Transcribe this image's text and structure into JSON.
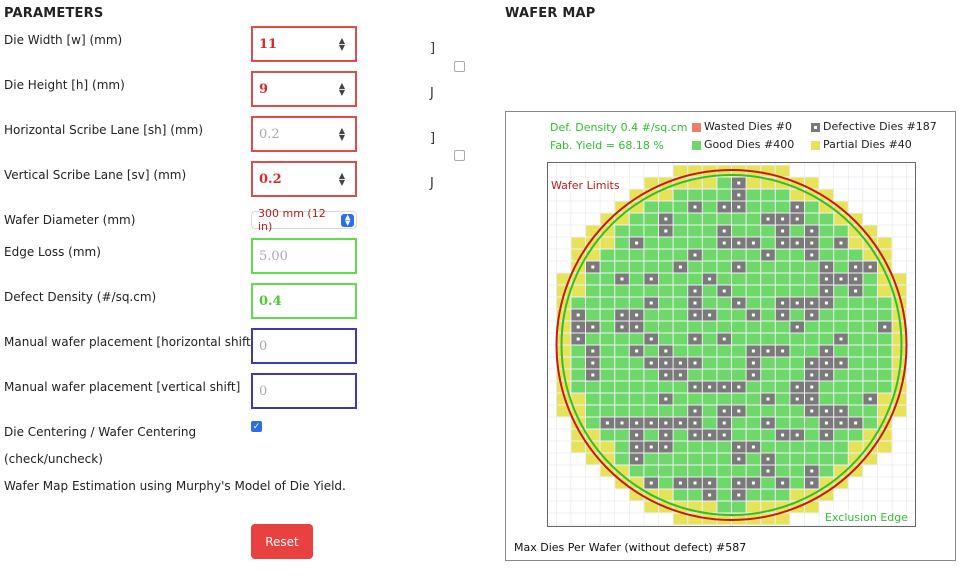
{
  "parameters": {
    "title": "PARAMETERS",
    "die_width": {
      "label": "Die Width [w] (mm)",
      "value": "11"
    },
    "die_height": {
      "label": "Die Height [h] (mm)",
      "value": "9"
    },
    "h_scribe": {
      "label": "Horizontal Scribe Lane [sh] (mm)",
      "value": "0.2"
    },
    "v_scribe": {
      "label": "Vertical Scribe Lane [sv] (mm)",
      "value": "0.2"
    },
    "wafer_diameter": {
      "label": "Wafer Diameter (mm)",
      "selected": "300 mm (12 in)"
    },
    "edge_loss": {
      "label": "Edge Loss (mm)",
      "value": "5.00"
    },
    "defect_density": {
      "label": "Defect Density (#/sq.cm)",
      "value": "0.4"
    },
    "h_shift": {
      "label": "Manual wafer placement [horizontal shift]",
      "placeholder": "0"
    },
    "v_shift": {
      "label": "Manual wafer placement [vertical shift]",
      "placeholder": "0"
    },
    "centering": {
      "label": "Die Centering / Wafer Centering",
      "label2": "(check/uncheck)",
      "checked": true
    },
    "model_note": "Wafer Map Estimation using Murphy's Model of Die Yield.",
    "reset_label": "Reset",
    "bracket_open": "]",
    "bracket_close": "J"
  },
  "wafer_map": {
    "title": "WAFER MAP",
    "def_density_text": "Def. Density 0.4 #/sq.cm",
    "fab_yield_text": "Fab. Yield = 68.18 %",
    "legend": {
      "wasted": "Wasted Dies  #0",
      "good": "Good Dies #400",
      "defective": "Defective Dies  #187",
      "partial": "Partial Dies #40"
    },
    "wafer_limits_label": "Wafer Limits",
    "exclusion_edge_label": "Exclusion Edge",
    "max_dies_text": "Max Dies Per Wafer (without defect) #587",
    "colors": {
      "wasted": "#f07c6c",
      "good": "#6fd86a",
      "defective": "#7a7a7a",
      "partial": "#e6e25a",
      "wafer_limit": "#c41a1a",
      "exclusion": "#2fbf2f",
      "label_green": "#2fbf2f",
      "label_red": "#c41a1a"
    }
  }
}
